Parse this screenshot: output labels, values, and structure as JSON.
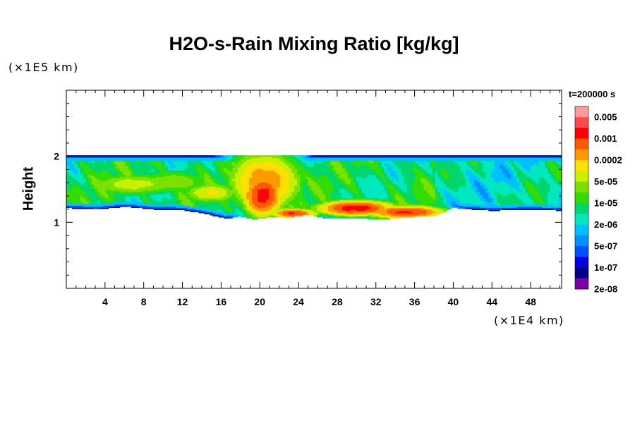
{
  "chart_data": {
    "type": "heatmap",
    "title": "H2O-s-Rain Mixing Ratio [kg/kg]",
    "ylabel": "Height",
    "xlabel": "",
    "x_unit_note": "(×1E4 km)",
    "y_unit_note": "(×1E5 km)",
    "time_label": "t=200000 s",
    "xlim": [
      0,
      51.2
    ],
    "ylim": [
      0,
      3
    ],
    "x_ticks": [
      "4",
      "8",
      "12",
      "16",
      "20",
      "24",
      "28",
      "32",
      "36",
      "40",
      "44",
      "48"
    ],
    "x_tick_values": [
      4,
      8,
      12,
      16,
      20,
      24,
      28,
      32,
      36,
      40,
      44,
      48
    ],
    "y_ticks": [
      "1",
      "2"
    ],
    "y_tick_values": [
      1,
      2
    ],
    "colorbar": {
      "labels": [
        "0.005",
        "0.001",
        "0.0002",
        "5e-05",
        "1e-05",
        "2e-06",
        "5e-07",
        "1e-07",
        "2e-08"
      ],
      "colors": [
        "#ff9a9a",
        "#ff4a4a",
        "#ff0000",
        "#ff5a00",
        "#ff9a00",
        "#ffe000",
        "#c8f000",
        "#7ce000",
        "#33dd00",
        "#00d66a",
        "#00e8c0",
        "#00c0ff",
        "#0090ff",
        "#0050ff",
        "#0000e0",
        "#00008c",
        "#7a00a8"
      ]
    },
    "field": {
      "cloud_top": 2.02,
      "cloud_base_profile": [
        [
          0,
          1.22
        ],
        [
          3,
          1.2
        ],
        [
          6,
          1.24
        ],
        [
          9,
          1.2
        ],
        [
          12,
          1.19
        ],
        [
          14.5,
          1.13
        ],
        [
          16.5,
          1.06
        ],
        [
          18,
          1.09
        ],
        [
          19.5,
          1.05
        ],
        [
          21,
          1.08
        ],
        [
          23,
          1.07
        ],
        [
          25,
          1.12
        ],
        [
          26.5,
          1.07
        ],
        [
          28,
          1.07
        ],
        [
          30,
          1.07
        ],
        [
          32.5,
          1.04
        ],
        [
          35,
          1.08
        ],
        [
          38,
          1.1
        ],
        [
          40,
          1.22
        ],
        [
          44,
          1.18
        ],
        [
          48,
          1.2
        ],
        [
          51.2,
          1.18
        ]
      ],
      "hotspots": [
        {
          "x": 20.3,
          "y": 1.42,
          "rx": 1.4,
          "ry": 0.22,
          "level": 0.0015
        },
        {
          "x": 20.5,
          "y": 1.62,
          "rx": 2.6,
          "ry": 0.32,
          "level": 0.0004
        },
        {
          "x": 23.5,
          "y": 1.14,
          "rx": 1.6,
          "ry": 0.05,
          "level": 0.0012
        },
        {
          "x": 30.0,
          "y": 1.22,
          "rx": 2.8,
          "ry": 0.08,
          "level": 0.0015
        },
        {
          "x": 35.0,
          "y": 1.16,
          "rx": 2.8,
          "ry": 0.07,
          "level": 0.0012
        },
        {
          "x": 15.0,
          "y": 1.45,
          "rx": 2.2,
          "ry": 0.12,
          "level": 0.0001
        },
        {
          "x": 7.0,
          "y": 1.58,
          "rx": 4.0,
          "ry": 0.13,
          "level": 6e-05
        },
        {
          "x": 11.0,
          "y": 1.62,
          "rx": 3.0,
          "ry": 0.14,
          "level": 4e-05
        }
      ]
    }
  }
}
